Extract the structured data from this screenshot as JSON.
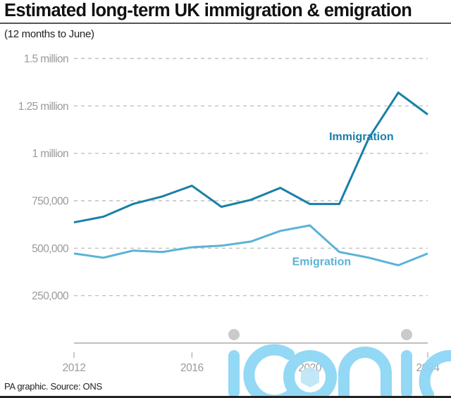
{
  "chart_data": {
    "type": "line",
    "title": "Estimated long-term UK immigration & emigration",
    "subtitle": "(12 months to June)",
    "xlabel": "",
    "ylabel": "",
    "x": [
      2012,
      2013,
      2014,
      2015,
      2016,
      2017,
      2018,
      2019,
      2020,
      2021,
      2022,
      2023,
      2024
    ],
    "xlim": [
      2012,
      2024
    ],
    "ylim": [
      0,
      1500000
    ],
    "grid": true,
    "xticks": [
      {
        "value": 2012,
        "label": "2012"
      },
      {
        "value": 2016,
        "label": "2016"
      },
      {
        "value": 2020,
        "label": "2020"
      },
      {
        "value": 2024,
        "label": "2024"
      }
    ],
    "yticks": [
      {
        "value": 250000,
        "label": "250,000"
      },
      {
        "value": 500000,
        "label": "500,000"
      },
      {
        "value": 750000,
        "label": "750,000"
      },
      {
        "value": 1000000,
        "label": "1 million"
      },
      {
        "value": 1250000,
        "label": "1.25 million"
      },
      {
        "value": 1500000,
        "label": "1.5 million"
      }
    ],
    "series": [
      {
        "name": "Immigration",
        "color": "#1a7fa8",
        "label_anchor": {
          "x": 2021.75,
          "y": 1070000
        },
        "values": [
          636000,
          666000,
          733000,
          773000,
          829000,
          718000,
          755000,
          818000,
          733000,
          733000,
          1080000,
          1320000,
          1205000
        ]
      },
      {
        "name": "Emigration",
        "color": "#5ab3d6",
        "label_anchor": {
          "x": 2020.4,
          "y": 410000
        },
        "values": [
          472000,
          450000,
          487000,
          480000,
          505000,
          513000,
          535000,
          591000,
          620000,
          480000,
          450000,
          410000,
          472000
        ]
      }
    ],
    "legend": "inline-labels"
  },
  "footer": {
    "source": "PA graphic. Source: ONS"
  },
  "watermark": {
    "text": "iconic",
    "color": "#8ed6f4"
  }
}
